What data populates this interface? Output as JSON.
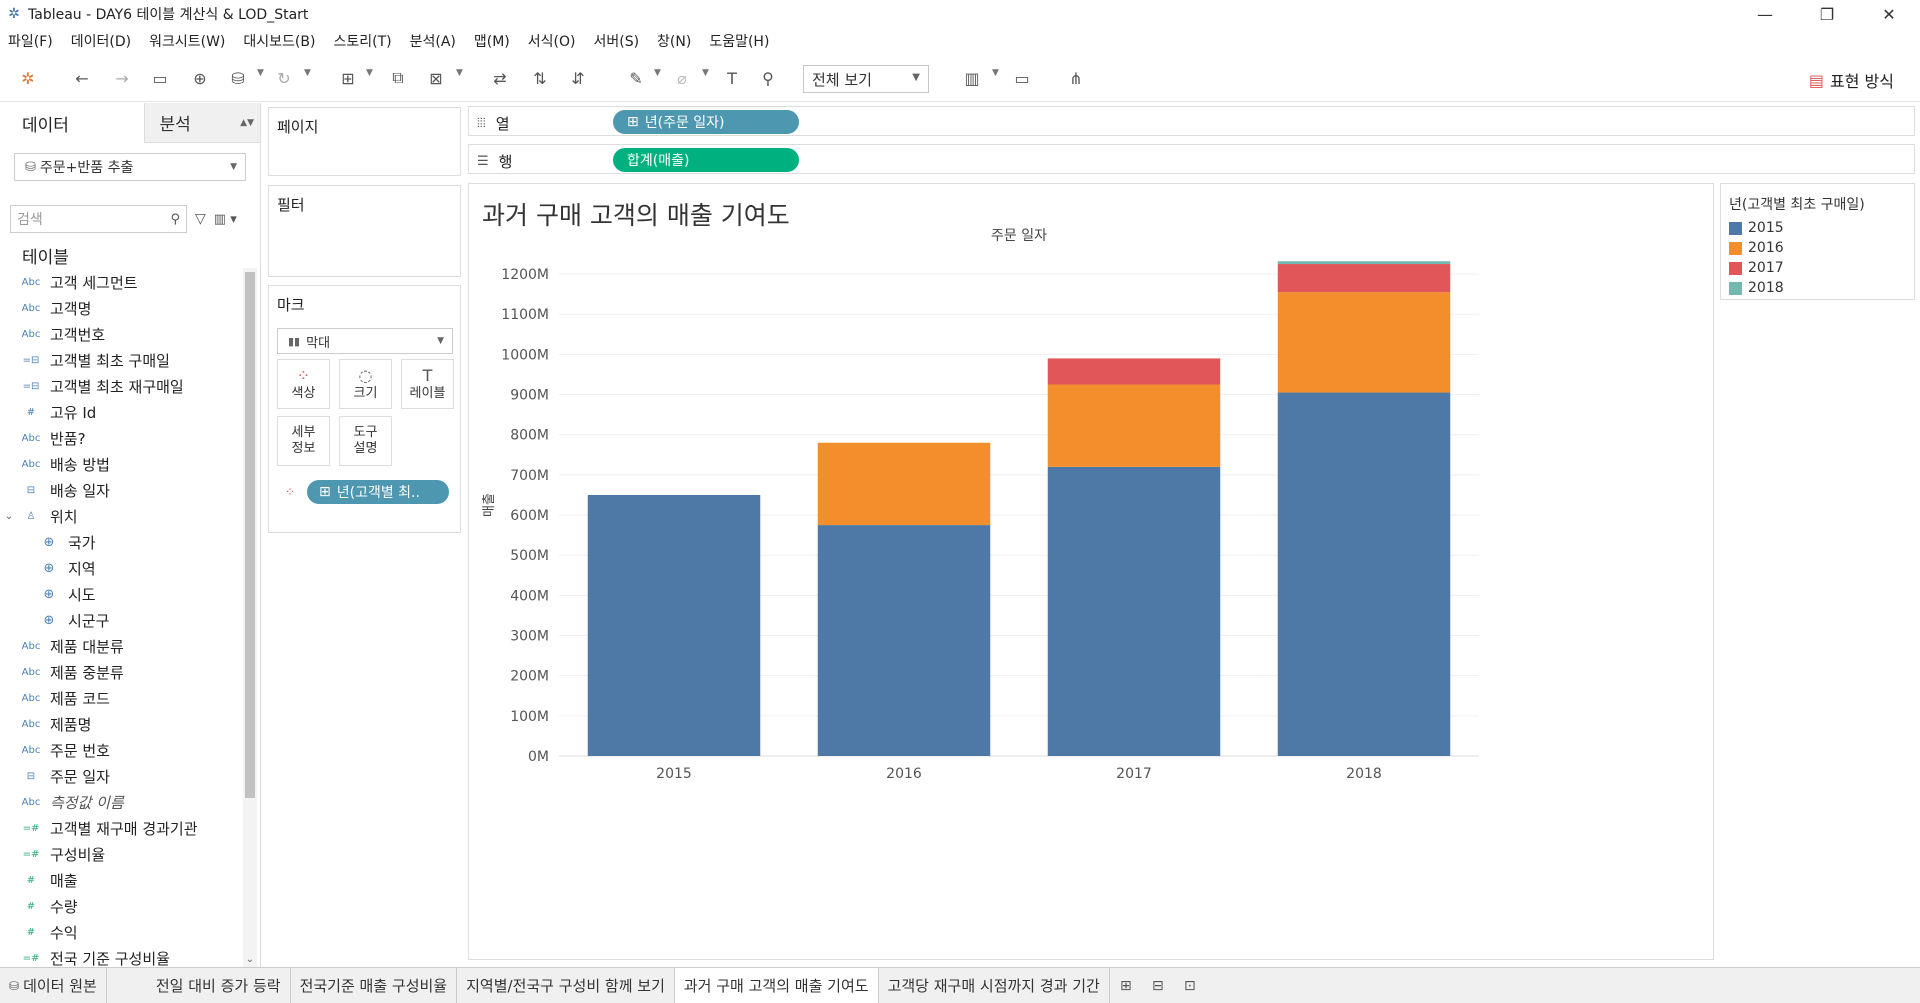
{
  "window": {
    "title": "Tableau - DAY6 테이블 계산식 & LOD_Start",
    "app_icon": "tableau-logo-icon",
    "controls": [
      "minimize-icon",
      "restore-icon",
      "close-icon"
    ]
  },
  "menu": [
    "파일(F)",
    "데이터(D)",
    "워크시트(W)",
    "대시보드(B)",
    "스토리(T)",
    "분석(A)",
    "맵(M)",
    "서식(O)",
    "서버(S)",
    "창(N)",
    "도움말(H)"
  ],
  "toolbar": {
    "view_select": "전체 보기",
    "show_me": "표현 방식"
  },
  "data_pane": {
    "tab_data": "데이터",
    "tab_analysis": "분석",
    "datasource": "주문+반품 추출",
    "search_placeholder": "검색",
    "tables_header": "테이블",
    "fields": [
      {
        "icon": "Abc",
        "label": "고객 세그먼트"
      },
      {
        "icon": "Abc",
        "label": "고객명"
      },
      {
        "icon": "Abc",
        "label": "고객번호"
      },
      {
        "icon": "=⊟",
        "label": "고객별 최초 구매일"
      },
      {
        "icon": "=⊟",
        "label": "고객별 최초 재구매일"
      },
      {
        "icon": "#",
        "label": "고유 Id"
      },
      {
        "icon": "Abc",
        "label": "반품?"
      },
      {
        "icon": "Abc",
        "label": "배송 방법"
      },
      {
        "icon": "⊟",
        "label": "배송 일자"
      },
      {
        "icon": "♙",
        "label": "위치"
      },
      {
        "icon": "⊕",
        "label": "국가"
      },
      {
        "icon": "⊕",
        "label": "지역"
      },
      {
        "icon": "⊕",
        "label": "시도"
      },
      {
        "icon": "⊕",
        "label": "시군구"
      },
      {
        "icon": "Abc",
        "label": "제품 대분류"
      },
      {
        "icon": "Abc",
        "label": "제품 중분류"
      },
      {
        "icon": "Abc",
        "label": "제품 코드"
      },
      {
        "icon": "Abc",
        "label": "제품명"
      },
      {
        "icon": "Abc",
        "label": "주문 번호"
      },
      {
        "icon": "⊟",
        "label": "주문 일자"
      },
      {
        "icon": "Abc",
        "label": "측정값 이름"
      },
      {
        "icon": "=#",
        "label": "고객별 재구매 경과기관"
      },
      {
        "icon": "=#",
        "label": "구성비율"
      },
      {
        "icon": "#",
        "label": "매출"
      },
      {
        "icon": "#",
        "label": "수량"
      },
      {
        "icon": "#",
        "label": "수익"
      },
      {
        "icon": "=#",
        "label": "전국 기준 구성비율"
      }
    ]
  },
  "shelves": {
    "pages": "페이지",
    "filters": "필터",
    "marks": "마크",
    "mark_type": "막대",
    "mark_buttons": {
      "color": "색상",
      "size": "크기",
      "label": "레이블",
      "detail_1": "세부",
      "detail_2": "정보",
      "tooltip_1": "도구",
      "tooltip_2": "설명"
    },
    "color_pill": "년(고객별 최..",
    "columns_label": "열",
    "columns_pill": "년(주문 일자)",
    "rows_label": "행",
    "rows_pill": "합계(매출)"
  },
  "viz": {
    "title": "과거 구매 고객의 매출 기여도",
    "colors": {
      "2015": "#4e79a7",
      "2016": "#f28e2b",
      "2017": "#e15759",
      "2018": "#76b7b2"
    }
  },
  "legend": {
    "title": "년(고객별 최초 구매일)",
    "items": [
      {
        "label": "2015",
        "color": "#4e79a7"
      },
      {
        "label": "2016",
        "color": "#f28e2b"
      },
      {
        "label": "2017",
        "color": "#e15759"
      },
      {
        "label": "2018",
        "color": "#76b7b2"
      }
    ]
  },
  "chart_data": {
    "type": "bar",
    "stacked": true,
    "title": "과거 구매 고객의 매출 기여도",
    "xlabel": "주문 일자",
    "ylabel": "매출",
    "categories": [
      "2015",
      "2016",
      "2017",
      "2018"
    ],
    "series": [
      {
        "name": "2015",
        "color": "#4e79a7",
        "values": [
          650,
          575,
          720,
          905
        ]
      },
      {
        "name": "2016",
        "color": "#f28e2b",
        "values": [
          0,
          205,
          205,
          250
        ]
      },
      {
        "name": "2017",
        "color": "#e15759",
        "values": [
          0,
          0,
          65,
          70
        ]
      },
      {
        "name": "2018",
        "color": "#76b7b2",
        "values": [
          0,
          0,
          0,
          7
        ]
      }
    ],
    "ylim": [
      0,
      1250
    ],
    "yticks": [
      0,
      100,
      200,
      300,
      400,
      500,
      600,
      700,
      800,
      900,
      1000,
      1100,
      1200
    ],
    "ytick_labels": [
      "0M",
      "100M",
      "200M",
      "300M",
      "400M",
      "500M",
      "600M",
      "700M",
      "800M",
      "900M",
      "1000M",
      "1100M",
      "1200M"
    ],
    "grid": true,
    "legend_position": "right"
  },
  "sheet_tabs": {
    "data_source": "데이터 원본",
    "sheets": [
      "전일 대비 증가 등락",
      "전국기준 매출 구성비율",
      "지역별/전국구 구성비 함께 보기",
      "과거 구매 고객의 매출 기여도",
      "고객당 재구매 시점까지 경과 기간"
    ],
    "active": "과거 구매 고객의 매출 기여도"
  }
}
